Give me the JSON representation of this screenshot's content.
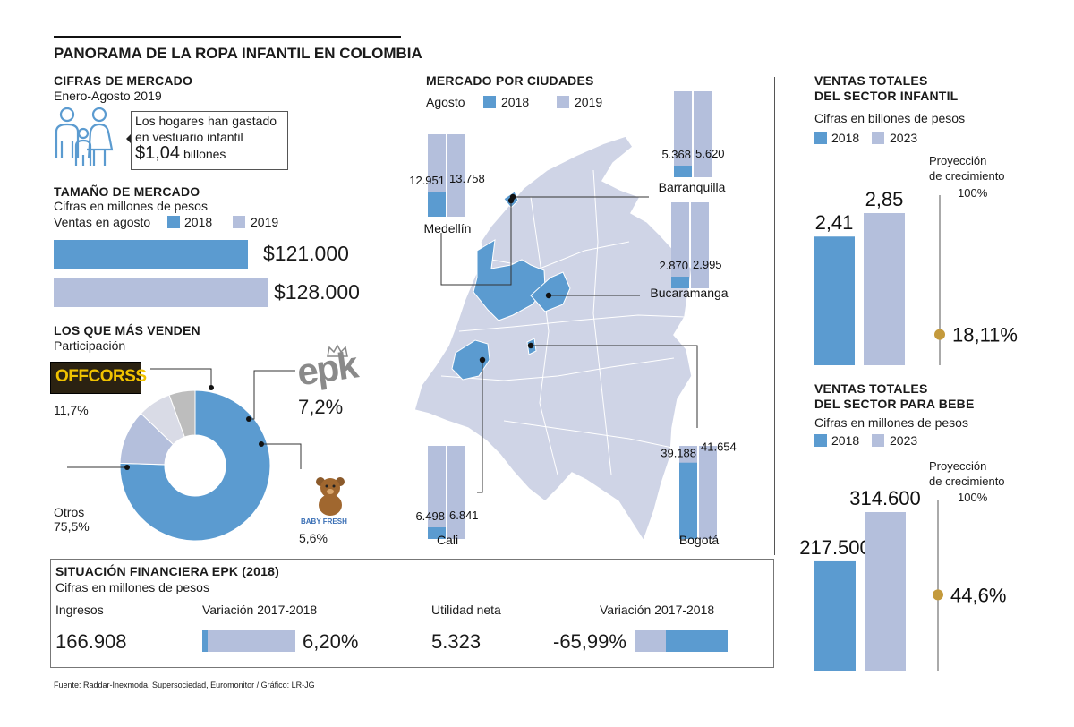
{
  "header": {
    "title": "PANORAMA DE LA ROPA INFANTIL  EN COLOMBIA"
  },
  "colors": {
    "c2018": "#5b9bd0",
    "c2019": "#b4bfdc",
    "gray": "#bdbdbd",
    "gold": "#c49a3c"
  },
  "cifras": {
    "title": "CIFRAS DE MERCADO",
    "period": "Enero-Agosto 2019",
    "box_line1": "Los hogares han gastado",
    "box_line2": "en vestuario infantil",
    "box_amount": "$1,04",
    "box_unit": " billones"
  },
  "tamano": {
    "title": "TAMAÑO DE MERCADO",
    "subtitle": "Cifras en millones de pesos",
    "legend_label": "Ventas en agosto",
    "legend_2018": "2018",
    "legend_2019": "2019",
    "value_2018": "$121.000",
    "value_2019": "$128.000"
  },
  "venden": {
    "title": "LOS QUE MÁS VENDEN",
    "subtitle": "Participación",
    "offcorss_logo": "OFFCORSS",
    "epk_logo": "epk",
    "babyfresh_logo": "BABY FRESH",
    "offcorss_pct": "11,7%",
    "epk_pct": "7,2%",
    "babyfresh_pct": "5,6%",
    "otros_label": "Otros",
    "otros_pct": "75,5%"
  },
  "ciudades": {
    "title": "MERCADO POR CIUDADES",
    "legend_label": "Agosto",
    "legend_2018": "2018",
    "legend_2019": "2019"
  },
  "ventas_infantil": {
    "title1": "VENTAS TOTALES",
    "title2": "DEL SECTOR INFANTIL",
    "subtitle": "Cifras en billones de pesos",
    "legend_2018": "2018",
    "legend_2023": "2023",
    "proj_label1": "Proyección",
    "proj_label2": "de crecimiento",
    "proj_max": "100%",
    "proj_value": "18,11%"
  },
  "ventas_bebe": {
    "title1": "VENTAS TOTALES",
    "title2": "DEL SECTOR PARA BEBE",
    "subtitle": "Cifras en millones de pesos",
    "legend_2018": "2018",
    "legend_2023": "2023",
    "proj_label1": "Proyección",
    "proj_label2": "de crecimiento",
    "proj_max": "100%",
    "proj_value": "44,6%"
  },
  "financiera": {
    "title": "SITUACIÓN FINANCIERA EPK (2018)",
    "subtitle": "Cifras en millones de pesos",
    "ingresos_label": "Ingresos",
    "ingresos_value": "166.908",
    "var1_label": "Variación 2017-2018",
    "var1_value": "6,20%",
    "utilidad_label": "Utilidad neta",
    "utilidad_value": "5.323",
    "var2_label": "Variación 2017-2018",
    "var2_value": "-65,99%"
  },
  "footer": {
    "source": "Fuente: Raddar-Inexmoda, Supersociedad, Euromonitor  / Gráfico: LR-JG"
  },
  "chart_data": [
    {
      "type": "bar",
      "title": "TAMAÑO DE MERCADO",
      "ylabel": "Cifras en millones de pesos",
      "categories": [
        "2018",
        "2019"
      ],
      "values": [
        121000,
        128000
      ],
      "labels": [
        "$121.000",
        "$128.000"
      ],
      "orientation": "horizontal",
      "xlim": [
        0,
        145000
      ]
    },
    {
      "type": "pie",
      "title": "LOS QUE MÁS VENDEN",
      "categories": [
        "Otros",
        "Offcorss",
        "EPK",
        "Baby Fresh"
      ],
      "values": [
        75.5,
        11.7,
        7.2,
        5.6
      ],
      "unit": "%"
    },
    {
      "type": "bar",
      "title": "MERCADO POR CIUDADES",
      "categories": [
        "Medellín",
        "Barranquilla",
        "Bucaramanga",
        "Cali",
        "Bogotá"
      ],
      "series": [
        {
          "name": "2018",
          "values": [
            12951,
            5368,
            2870,
            6498,
            39188
          ],
          "labels": [
            "12.951",
            "5.368",
            "2.870",
            "6.498",
            "39.188"
          ]
        },
        {
          "name": "2019",
          "values": [
            13758,
            5620,
            2995,
            6841,
            41654
          ],
          "labels": [
            "13.758",
            "5.620",
            "2.995",
            "6.841",
            "41.654"
          ]
        }
      ]
    },
    {
      "type": "bar",
      "title": "VENTAS TOTALES DEL SECTOR INFANTIL",
      "ylabel": "Cifras en billones de pesos",
      "categories": [
        "2018",
        "2023"
      ],
      "values": [
        2.41,
        2.85
      ],
      "labels": [
        "2,41",
        "2,85"
      ],
      "projection": {
        "label": "Proyección de crecimiento",
        "value": 18.11,
        "max": 100
      }
    },
    {
      "type": "bar",
      "title": "VENTAS TOTALES DEL SECTOR PARA BEBE",
      "ylabel": "Cifras en millones de pesos",
      "categories": [
        "2018",
        "2023"
      ],
      "values": [
        217500,
        314600
      ],
      "labels": [
        "217.500",
        "314.600"
      ],
      "projection": {
        "label": "Proyección de crecimiento",
        "value": 44.6,
        "max": 100
      }
    },
    {
      "type": "bar",
      "title": "SITUACIÓN FINANCIERA EPK (2018)",
      "categories": [
        "Ingresos variación 2017-2018",
        "Utilidad neta variación 2017-2018"
      ],
      "values": [
        6.2,
        -65.99
      ],
      "unit": "%",
      "metrics": {
        "Ingresos": 166908,
        "Utilidad neta": 5323
      }
    }
  ]
}
